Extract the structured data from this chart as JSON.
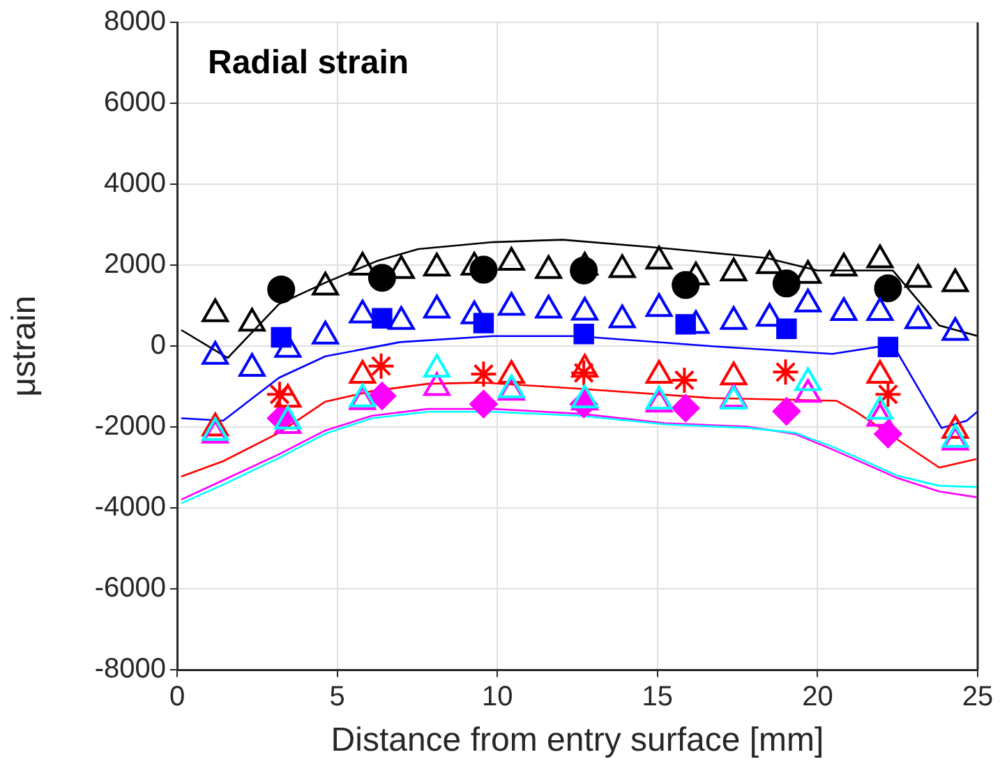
{
  "chart_data": {
    "type": "line",
    "title": "Radial strain",
    "xlabel": "Distance from entry surface [mm]",
    "ylabel": "μstrain",
    "xlim": [
      0,
      25
    ],
    "xticks": [
      0,
      5,
      10,
      15,
      20,
      25
    ],
    "ylim": [
      -8000,
      8000
    ],
    "yticks": [
      -8000,
      -6000,
      -4000,
      -2000,
      0,
      2000,
      4000,
      6000,
      8000
    ],
    "grid": true,
    "legend": false,
    "series": [
      {
        "color": "#000000",
        "marker": "none",
        "x": [
          0.13,
          1.58,
          3.18,
          4.63,
          6.23,
          7.53,
          9.86,
          12.04,
          15.2,
          18.4,
          20.0,
          22.35,
          23.8,
          25
        ],
        "values": [
          400,
          -290,
          1040,
          1570,
          2100,
          2400,
          2570,
          2630,
          2420,
          2180,
          1870,
          1870,
          510,
          250
        ]
      },
      {
        "color": "#0000ff",
        "marker": "none",
        "x": [
          0.13,
          1.44,
          3.18,
          4.63,
          6.96,
          9.86,
          12.47,
          16.68,
          20.46,
          22.35,
          23.87,
          24.66,
          25
        ],
        "values": [
          -1780,
          -1840,
          -780,
          -250,
          100,
          250,
          250,
          0,
          -190,
          40,
          -2020,
          -1840,
          -1610
        ]
      },
      {
        "color": "#ff0000",
        "marker": "none",
        "x": [
          0.13,
          1.44,
          3.18,
          4.63,
          6.08,
          7.83,
          9.57,
          12.33,
          16.68,
          20.6,
          21.18,
          22.5,
          23.8,
          24.96
        ],
        "values": [
          -3220,
          -2840,
          -2140,
          -1370,
          -1110,
          -930,
          -900,
          -1040,
          -1280,
          -1350,
          -1610,
          -2310,
          -3000,
          -2790
        ]
      },
      {
        "color": "#00ffff",
        "marker": "none",
        "x": [
          0.13,
          1.44,
          3.18,
          4.63,
          6.08,
          7.83,
          9.86,
          12.6,
          15.23,
          17.84,
          19.3,
          20.46,
          22.5,
          23.8,
          24.96
        ],
        "values": [
          -3880,
          -3420,
          -2760,
          -2160,
          -1780,
          -1620,
          -1620,
          -1720,
          -1930,
          -2020,
          -2140,
          -2480,
          -3200,
          -3450,
          -3480
        ]
      },
      {
        "color": "#ff00ff",
        "marker": "none",
        "x": [
          0.13,
          1.44,
          3.18,
          4.63,
          6.08,
          7.83,
          9.86,
          12.6,
          15.23,
          17.84,
          19.3,
          20.46,
          22.5,
          23.8,
          24.96
        ],
        "values": [
          -3790,
          -3310,
          -2670,
          -2080,
          -1720,
          -1550,
          -1550,
          -1670,
          -1900,
          -1990,
          -2170,
          -2550,
          -3260,
          -3590,
          -3730
        ]
      },
      {
        "type": "scatter",
        "color": "#000000",
        "marker": "triangle",
        "x": [
          1.19,
          2.34,
          4.63,
          5.79,
          7.0,
          8.11,
          9.28,
          10.44,
          11.6,
          12.73,
          13.9,
          15.05,
          16.2,
          17.38,
          18.5,
          19.7,
          20.82,
          21.95,
          23.14,
          24.3
        ],
        "values": [
          800,
          570,
          1460,
          1950,
          1870,
          1930,
          1950,
          2070,
          1870,
          1950,
          1890,
          2100,
          1710,
          1810,
          1990,
          1750,
          1930,
          2130,
          1650,
          1540
        ]
      },
      {
        "type": "scatter",
        "color": "#0000ff",
        "marker": "triangle",
        "x": [
          1.19,
          2.34,
          3.46,
          4.63,
          5.79,
          7.0,
          8.11,
          9.28,
          10.44,
          11.6,
          12.73,
          13.9,
          15.05,
          16.2,
          17.38,
          18.5,
          19.7,
          20.82,
          21.95,
          23.14,
          24.3
        ],
        "values": [
          -250,
          -550,
          -80,
          250,
          770,
          610,
          890,
          750,
          960,
          890,
          840,
          650,
          930,
          510,
          610,
          690,
          1040,
          830,
          830,
          630,
          340
        ]
      },
      {
        "type": "scatter",
        "color": "#00ffff",
        "marker": "triangle",
        "x": [
          1.19,
          3.46,
          5.79,
          8.11,
          10.44,
          12.73,
          15.05,
          17.38,
          19.7,
          21.95,
          24.3
        ],
        "values": [
          -2130,
          -1850,
          -1300,
          -570,
          -1080,
          -1330,
          -1360,
          -1360,
          -900,
          -1610,
          -2300
        ]
      },
      {
        "type": "scatter",
        "color": "#ff00ff",
        "marker": "triangle",
        "x": [
          1.19,
          3.46,
          5.79,
          8.11,
          10.44,
          12.73,
          15.05,
          17.38,
          19.7,
          21.95,
          24.3
        ],
        "values": [
          -2200,
          -1960,
          -1370,
          -1020,
          -1140,
          -1380,
          -1430,
          -1310,
          -1190,
          -1780,
          -2370
        ]
      },
      {
        "type": "scatter",
        "color": "#ff0000",
        "marker": "triangle",
        "x": [
          1.19,
          3.46,
          5.79,
          8.11,
          10.44,
          12.73,
          15.05,
          17.38,
          21.95,
          24.3
        ],
        "values": [
          -2020,
          -1310,
          -720,
          null,
          -720,
          -570,
          -720,
          -760,
          -720,
          -2080
        ]
      },
      {
        "type": "scatter",
        "color": "#000000",
        "marker": "circle",
        "x": [
          3.25,
          6.4,
          9.57,
          12.7,
          15.88,
          19.03,
          22.2
        ],
        "values": [
          1400,
          1690,
          1890,
          1870,
          1510,
          1550,
          1430
        ]
      },
      {
        "type": "scatter",
        "color": "#0000ff",
        "marker": "square",
        "x": [
          3.25,
          6.4,
          9.57,
          12.7,
          15.88,
          19.03,
          22.2
        ],
        "values": [
          220,
          690,
          570,
          300,
          540,
          430,
          -20
        ]
      },
      {
        "type": "scatter",
        "color": "#ff0000",
        "marker": "cross",
        "x": [
          3.2,
          6.37,
          9.57,
          12.7,
          15.84,
          19.0,
          22.2
        ],
        "values": [
          -1190,
          -490,
          -690,
          -660,
          -840,
          -640,
          -1190
        ]
      },
      {
        "type": "scatter",
        "color": "#ff00ff",
        "marker": "diamond",
        "x": [
          3.25,
          6.4,
          9.57,
          12.7,
          15.88,
          19.03,
          22.2
        ],
        "values": [
          -1780,
          -1230,
          -1430,
          -1430,
          -1530,
          -1610,
          -2170
        ]
      }
    ]
  }
}
